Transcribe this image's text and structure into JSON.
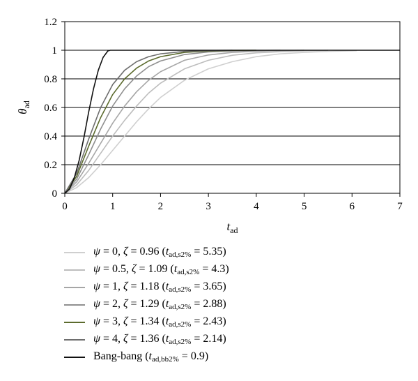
{
  "chart_data": {
    "type": "line",
    "xlabel": "t_ad",
    "ylabel": "θ_ad",
    "xlim": [
      0,
      7
    ],
    "ylim": [
      0,
      1.2
    ],
    "x_ticks": [
      "0",
      "1",
      "2",
      "3",
      "4",
      "5",
      "6",
      "7"
    ],
    "y_ticks": [
      "0",
      "0.2",
      "0.4",
      "0.6",
      "0.8",
      "1",
      "1.2"
    ],
    "grid": "horizontal",
    "legend_position": "below",
    "series": [
      {
        "name": "ψ = 0, ζ = 0.96 (t_ad,s2% = 5.35)",
        "psi": "0",
        "zeta": "0.96",
        "t_label": "t",
        "t_sub": "ad,s2%",
        "t_value": "5.35",
        "color": "#cfcfcf",
        "x": [
          0,
          0.25,
          0.5,
          0.75,
          1.0,
          1.25,
          1.5,
          1.75,
          2.0,
          2.5,
          3.0,
          3.5,
          4.0,
          4.5,
          5.0,
          5.5,
          6.1
        ],
        "y": [
          0,
          0.04,
          0.11,
          0.2,
          0.3,
          0.4,
          0.5,
          0.59,
          0.67,
          0.79,
          0.87,
          0.92,
          0.955,
          0.975,
          0.985,
          0.992,
          0.997
        ]
      },
      {
        "name": "ψ = 0.5, ζ = 1.09 (t_ad,s2% = 4.3)",
        "psi": "0.5",
        "zeta": "1.09",
        "t_label": "t",
        "t_sub": "ad,s2%",
        "t_value": "4.3",
        "color": "#bdbdbd",
        "x": [
          0,
          0.25,
          0.5,
          0.75,
          1.0,
          1.25,
          1.5,
          1.75,
          2.0,
          2.5,
          3.0,
          3.5,
          4.0,
          4.5,
          5.0,
          5.5
        ],
        "y": [
          0,
          0.06,
          0.16,
          0.28,
          0.4,
          0.51,
          0.61,
          0.7,
          0.77,
          0.87,
          0.93,
          0.965,
          0.982,
          0.99,
          0.996,
          0.999
        ]
      },
      {
        "name": "ψ = 1, ζ = 1.18 (t_ad,s2% = 3.65)",
        "psi": "1",
        "zeta": "1.18",
        "t_label": "t",
        "t_sub": "ad,s2%",
        "t_value": "3.65",
        "color": "#a6a6a6",
        "x": [
          0,
          0.25,
          0.5,
          0.75,
          1.0,
          1.25,
          1.5,
          1.75,
          2.0,
          2.5,
          3.0,
          3.5,
          4.0,
          4.5,
          5.0
        ],
        "y": [
          0,
          0.08,
          0.21,
          0.35,
          0.49,
          0.61,
          0.71,
          0.79,
          0.85,
          0.93,
          0.967,
          0.985,
          0.993,
          0.997,
          1.0
        ]
      },
      {
        "name": "ψ = 2, ζ = 1.29 (t_ad,s2% = 2.88)",
        "psi": "2",
        "zeta": "1.29",
        "t_label": "t",
        "t_sub": "ad,s2%",
        "t_value": "2.88",
        "color": "#8f8f8f",
        "x": [
          0,
          0.25,
          0.5,
          0.75,
          1.0,
          1.25,
          1.5,
          1.75,
          2.0,
          2.5,
          3.0,
          3.5,
          4.0,
          4.5
        ],
        "y": [
          0,
          0.1,
          0.27,
          0.45,
          0.61,
          0.73,
          0.82,
          0.885,
          0.925,
          0.97,
          0.988,
          0.995,
          0.998,
          1.0
        ]
      },
      {
        "name": "ψ = 3, ζ = 1.34 (t_ad,s2% = 2.43)",
        "psi": "3",
        "zeta": "1.34",
        "t_label": "t",
        "t_sub": "ad,s2%",
        "t_value": "2.43",
        "color": "#5c6b2e",
        "x": [
          0,
          0.25,
          0.5,
          0.75,
          1.0,
          1.25,
          1.5,
          1.75,
          2.0,
          2.5,
          3.0,
          3.5,
          4.0
        ],
        "y": [
          0,
          0.12,
          0.33,
          0.53,
          0.69,
          0.8,
          0.875,
          0.925,
          0.955,
          0.985,
          0.995,
          0.999,
          1.0
        ]
      },
      {
        "name": "ψ = 4, ζ = 1.36 (t_ad,s2% = 2.14)",
        "psi": "4",
        "zeta": "1.36",
        "t_label": "t",
        "t_sub": "ad,s2%",
        "t_value": "2.14",
        "color": "#6e6e6e",
        "x": [
          0,
          0.25,
          0.5,
          0.75,
          1.0,
          1.25,
          1.5,
          1.75,
          2.0,
          2.5,
          3.0,
          3.5
        ],
        "y": [
          0,
          0.14,
          0.38,
          0.6,
          0.76,
          0.86,
          0.92,
          0.955,
          0.975,
          0.992,
          0.998,
          1.0
        ]
      },
      {
        "name": "Bang-bang (t_ad,bb2% = 0.9)",
        "label": "Bang-bang",
        "t_label": "t",
        "t_sub": "ad,bb2%",
        "t_value": "0.9",
        "color": "#111111",
        "x": [
          0,
          0.1,
          0.2,
          0.3,
          0.4,
          0.45,
          0.5,
          0.6,
          0.7,
          0.8,
          0.9,
          0.95,
          7.0
        ],
        "y": [
          0,
          0.03,
          0.11,
          0.23,
          0.39,
          0.48,
          0.57,
          0.73,
          0.86,
          0.95,
          0.995,
          1.0,
          1.0
        ]
      }
    ]
  }
}
